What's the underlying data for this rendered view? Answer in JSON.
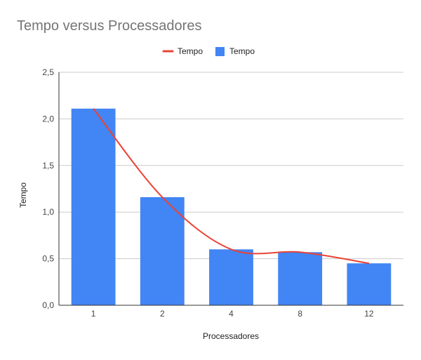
{
  "chart_data": {
    "type": "bar",
    "title": "Tempo versus Processadores",
    "xlabel": "Processadores",
    "ylabel": "Tempo",
    "categories": [
      "1",
      "2",
      "4",
      "8",
      "12"
    ],
    "series": [
      {
        "name": "Tempo",
        "kind": "line",
        "values": [
          2.11,
          1.16,
          0.6,
          0.57,
          0.45
        ],
        "color": "#ea4335",
        "smooth": true
      },
      {
        "name": "Tempo",
        "kind": "bar",
        "values": [
          2.11,
          1.16,
          0.6,
          0.57,
          0.45
        ],
        "color": "#4285f4"
      }
    ],
    "ylim": [
      0,
      2.5
    ],
    "yticks": [
      "0,0",
      "0,5",
      "1,0",
      "1,5",
      "2,0",
      "2,5"
    ],
    "grid": true,
    "legend": "top-center"
  }
}
